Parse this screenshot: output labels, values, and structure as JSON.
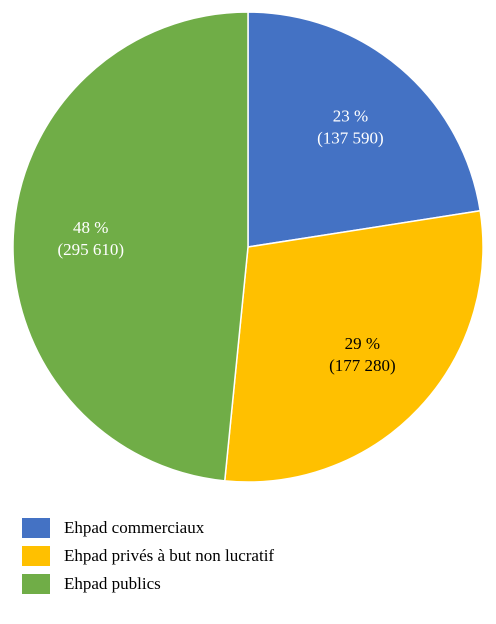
{
  "chart_data": {
    "type": "pie",
    "slices": [
      {
        "label": "Ehpad commerciaux",
        "percent_label": "23 %",
        "value": 137590,
        "value_label": "(137 590)",
        "color": "#4472C4",
        "text_color": "#ffffff"
      },
      {
        "label": "Ehpad privés à but non lucratif",
        "percent_label": "29 %",
        "value": 177280,
        "value_label": "(177 280)",
        "color": "#FFC000",
        "text_color": "#000000"
      },
      {
        "label": "Ehpad publics",
        "percent_label": "48 %",
        "value": 295610,
        "value_label": "(295 610)",
        "color": "#70AD47",
        "text_color": "#ffffff"
      }
    ],
    "start_angle": "12 o'clock",
    "direction": "clockwise",
    "legend_position": "bottom-left"
  }
}
